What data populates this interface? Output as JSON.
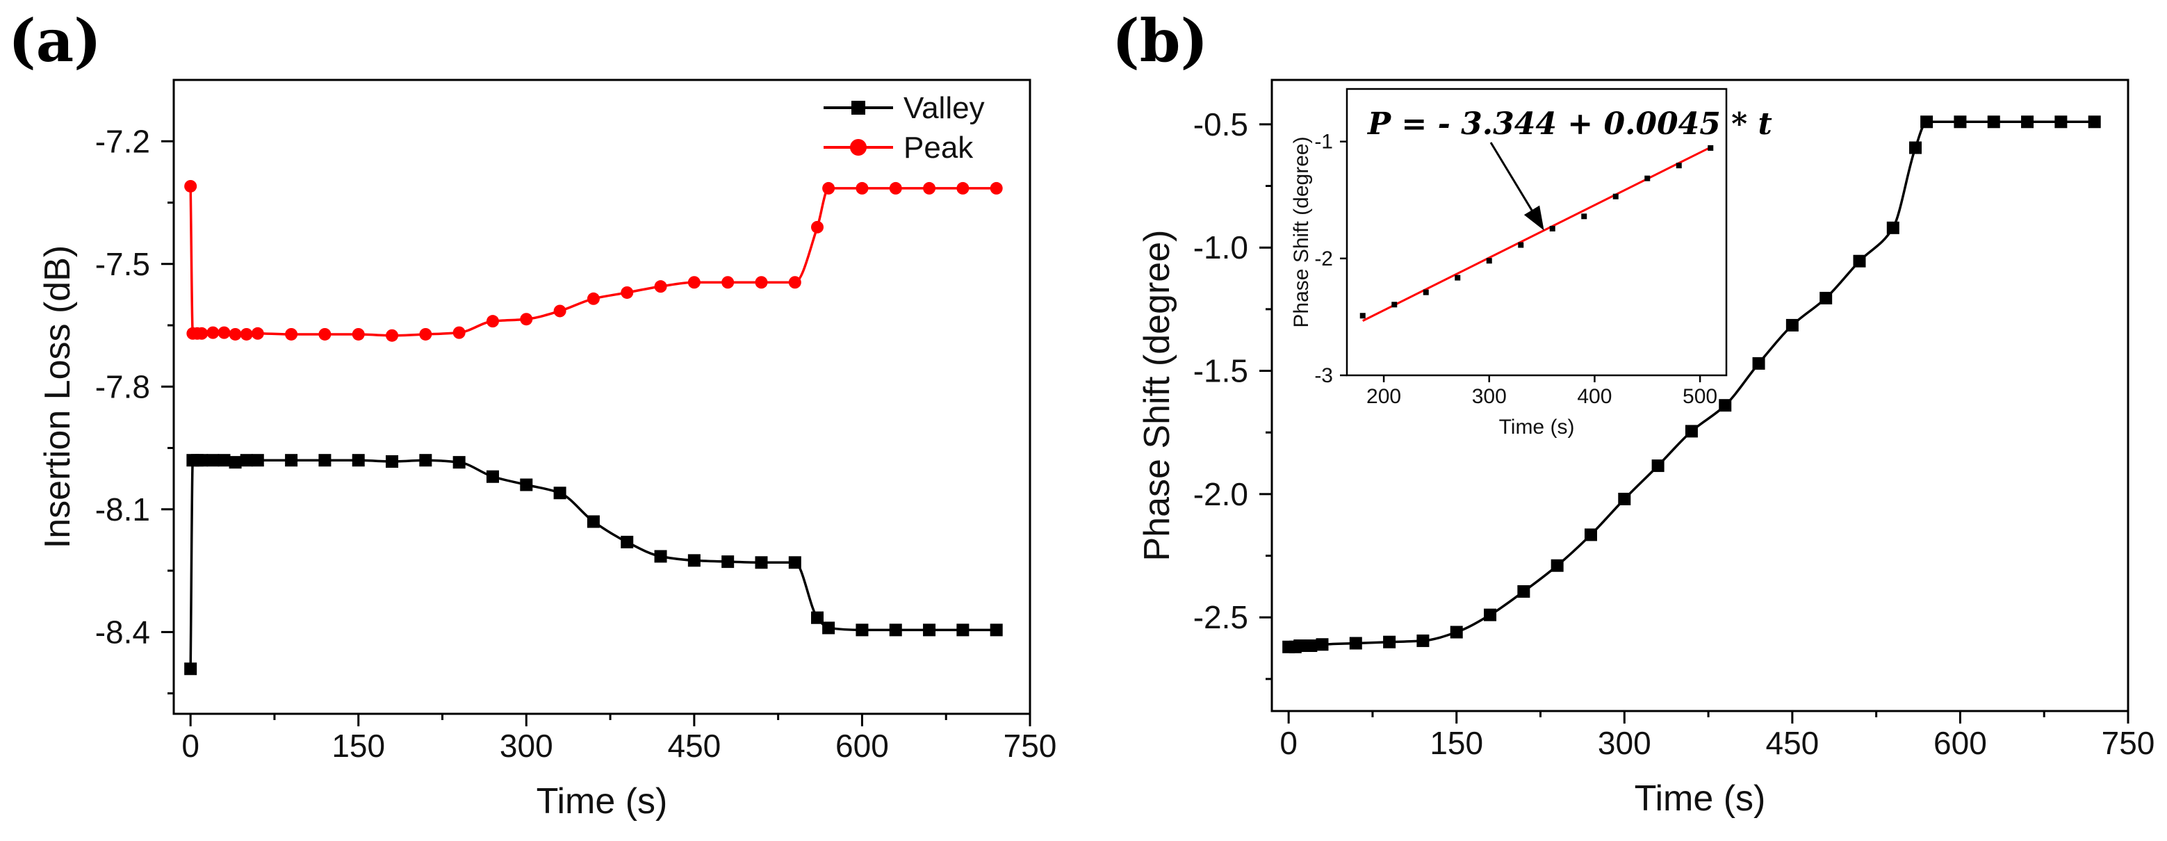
{
  "chart_data": [
    {
      "type": "line",
      "panel_label": "(a)",
      "title": "",
      "xlabel": "Time (s)",
      "ylabel": "Insertion Loss (dB)",
      "xlim": [
        -15,
        750
      ],
      "ylim": [
        -8.6,
        -7.05
      ],
      "xticks": [
        0,
        150,
        300,
        450,
        600,
        750
      ],
      "xtick_labels": [
        "0",
        "150",
        "300",
        "450",
        "600",
        "750"
      ],
      "yticks": [
        -7.2,
        -7.5,
        -7.8,
        -8.1,
        -8.4
      ],
      "ytick_labels": [
        "-7.2",
        "-7.5",
        "-7.8",
        "-8.1",
        "-8.4"
      ],
      "legend_position": "top-right",
      "series": [
        {
          "name": "Valley",
          "color": "#000000",
          "marker": "square",
          "x": [
            0,
            2,
            6,
            10,
            20,
            30,
            40,
            50,
            60,
            90,
            120,
            150,
            180,
            210,
            240,
            270,
            300,
            330,
            360,
            390,
            420,
            450,
            480,
            510,
            540,
            560,
            570,
            600,
            630,
            660,
            690,
            720
          ],
          "y": [
            -8.49,
            -7.98,
            -7.98,
            -7.98,
            -7.98,
            -7.98,
            -7.985,
            -7.98,
            -7.98,
            -7.98,
            -7.98,
            -7.98,
            -7.983,
            -7.98,
            -7.985,
            -8.02,
            -8.04,
            -8.06,
            -8.13,
            -8.18,
            -8.215,
            -8.225,
            -8.228,
            -8.23,
            -8.23,
            -8.365,
            -8.39,
            -8.395,
            -8.395,
            -8.395,
            -8.395,
            -8.395
          ]
        },
        {
          "name": "Peak",
          "color": "#ff0000",
          "marker": "circle",
          "x": [
            0,
            2,
            6,
            10,
            20,
            30,
            40,
            50,
            60,
            90,
            120,
            150,
            180,
            210,
            240,
            270,
            300,
            330,
            360,
            390,
            420,
            450,
            480,
            510,
            540,
            560,
            570,
            600,
            630,
            660,
            690,
            720
          ],
          "y": [
            -7.31,
            -7.67,
            -7.67,
            -7.67,
            -7.668,
            -7.668,
            -7.672,
            -7.672,
            -7.67,
            -7.672,
            -7.672,
            -7.672,
            -7.675,
            -7.672,
            -7.668,
            -7.64,
            -7.635,
            -7.615,
            -7.585,
            -7.57,
            -7.555,
            -7.545,
            -7.545,
            -7.545,
            -7.545,
            -7.41,
            -7.315,
            -7.315,
            -7.315,
            -7.315,
            -7.315,
            -7.315
          ]
        }
      ]
    },
    {
      "type": "line",
      "panel_label": "(b)",
      "title": "",
      "xlabel": "Time (s)",
      "ylabel": "Phase Shift (degree)",
      "xlim": [
        -15,
        750
      ],
      "ylim": [
        -2.88,
        -0.32
      ],
      "xticks": [
        0,
        150,
        300,
        450,
        600,
        750
      ],
      "xtick_labels": [
        "0",
        "150",
        "300",
        "450",
        "600",
        "750"
      ],
      "yticks": [
        -0.5,
        -1.0,
        -1.5,
        -2.0,
        -2.5
      ],
      "ytick_labels": [
        "-0.5",
        "-1.0",
        "-1.5",
        "-2.0",
        "-2.5"
      ],
      "series": [
        {
          "name": "Phase Shift",
          "color": "#000000",
          "marker": "square",
          "x": [
            0,
            6,
            10,
            20,
            30,
            60,
            90,
            120,
            150,
            180,
            210,
            240,
            270,
            300,
            330,
            360,
            390,
            420,
            450,
            480,
            510,
            540,
            560,
            570,
            600,
            630,
            660,
            690,
            720
          ],
          "y": [
            -2.62,
            -2.62,
            -2.615,
            -2.615,
            -2.61,
            -2.605,
            -2.6,
            -2.595,
            -2.56,
            -2.49,
            -2.395,
            -2.29,
            -2.165,
            -2.02,
            -1.885,
            -1.745,
            -1.64,
            -1.47,
            -1.315,
            -1.205,
            -1.055,
            -0.92,
            -0.595,
            -0.49,
            -0.49,
            -0.49,
            -0.49,
            -0.49,
            -0.49
          ]
        }
      ],
      "inset": {
        "type": "scatter",
        "xlabel": "Time (s)",
        "ylabel": "Phase Shift (degree)",
        "xlim": [
          165,
          525
        ],
        "ylim": [
          -3.0,
          -0.55
        ],
        "xticks": [
          200,
          300,
          400,
          500
        ],
        "xtick_labels": [
          "200",
          "300",
          "400",
          "500"
        ],
        "yticks": [
          -1,
          -2,
          -3
        ],
        "ytick_labels": [
          "-1",
          "-2",
          "-3"
        ],
        "points": {
          "x": [
            180,
            210,
            240,
            270,
            300,
            330,
            360,
            390,
            420,
            450,
            480,
            510
          ],
          "y": [
            -2.49,
            -2.395,
            -2.29,
            -2.165,
            -2.02,
            -1.885,
            -1.745,
            -1.64,
            -1.47,
            -1.315,
            -1.205,
            -1.055
          ]
        },
        "fit": {
          "intercept": -3.344,
          "slope": 0.0045,
          "x_range": [
            180,
            510
          ],
          "color": "#ff0000"
        },
        "annotation": "P = - 3.344 + 0.0045 * t",
        "annotation_arrow_target": [
          352,
          -1.76
        ]
      }
    }
  ]
}
